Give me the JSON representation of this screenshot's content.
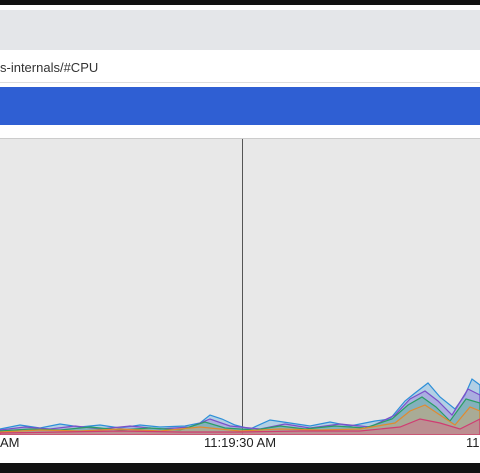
{
  "address_bar": {
    "url": "s-internals/#CPU"
  },
  "chart": {
    "time_labels": [
      "AM",
      "11:19:30 AM",
      "11"
    ]
  }
}
